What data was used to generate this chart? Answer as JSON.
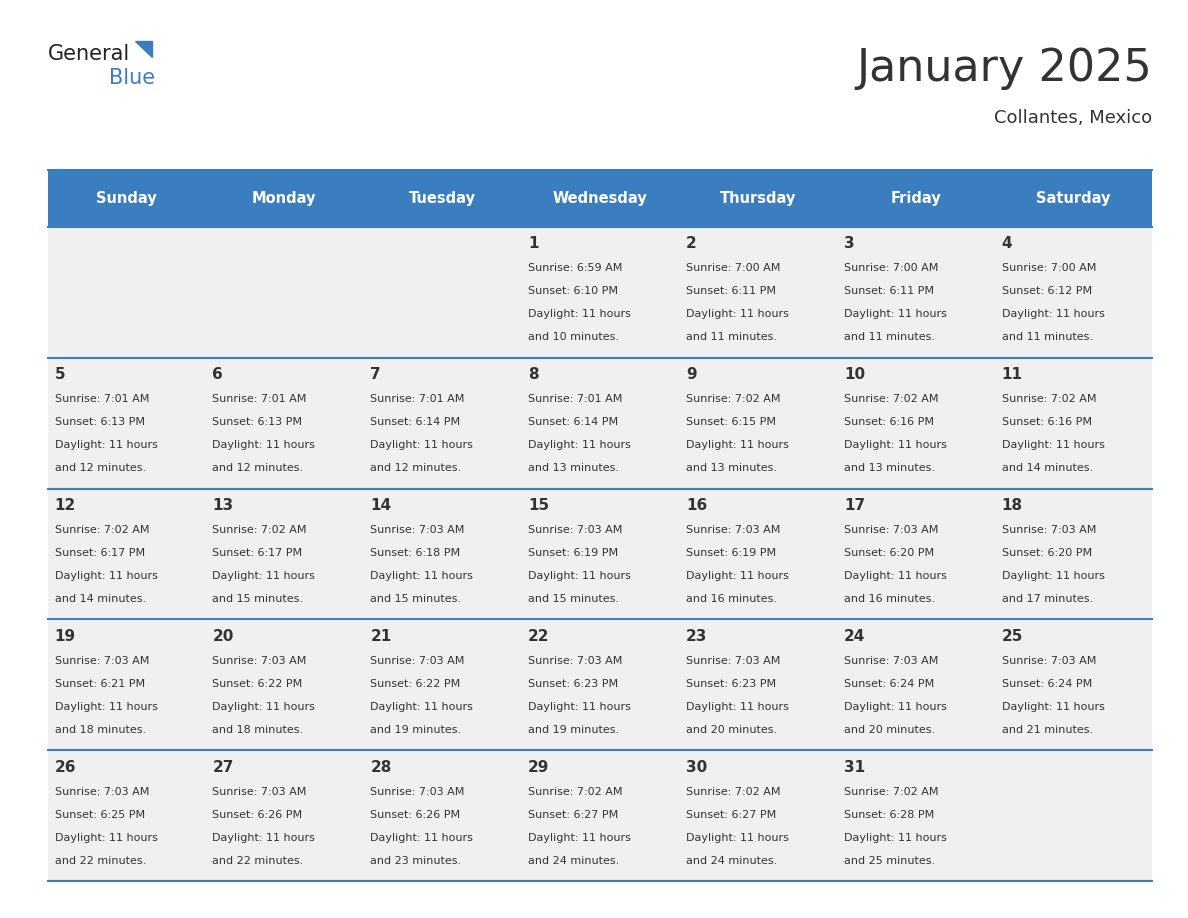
{
  "title": "January 2025",
  "subtitle": "Collantes, Mexico",
  "header_bg": "#3a7ebf",
  "header_text_color": "#ffffff",
  "cell_bg_odd": "#f0f0f0",
  "cell_bg_even": "#ffffff",
  "separator_color": "#3a7ebf",
  "text_color": "#333333",
  "days_of_week": [
    "Sunday",
    "Monday",
    "Tuesday",
    "Wednesday",
    "Thursday",
    "Friday",
    "Saturday"
  ],
  "calendar_data": [
    [
      {
        "day": "",
        "sunrise": "",
        "sunset": "",
        "daylight": ""
      },
      {
        "day": "",
        "sunrise": "",
        "sunset": "",
        "daylight": ""
      },
      {
        "day": "",
        "sunrise": "",
        "sunset": "",
        "daylight": ""
      },
      {
        "day": "1",
        "sunrise": "6:59 AM",
        "sunset": "6:10 PM",
        "daylight": "11 hours and 10 minutes."
      },
      {
        "day": "2",
        "sunrise": "7:00 AM",
        "sunset": "6:11 PM",
        "daylight": "11 hours and 11 minutes."
      },
      {
        "day": "3",
        "sunrise": "7:00 AM",
        "sunset": "6:11 PM",
        "daylight": "11 hours and 11 minutes."
      },
      {
        "day": "4",
        "sunrise": "7:00 AM",
        "sunset": "6:12 PM",
        "daylight": "11 hours and 11 minutes."
      }
    ],
    [
      {
        "day": "5",
        "sunrise": "7:01 AM",
        "sunset": "6:13 PM",
        "daylight": "11 hours and 12 minutes."
      },
      {
        "day": "6",
        "sunrise": "7:01 AM",
        "sunset": "6:13 PM",
        "daylight": "11 hours and 12 minutes."
      },
      {
        "day": "7",
        "sunrise": "7:01 AM",
        "sunset": "6:14 PM",
        "daylight": "11 hours and 12 minutes."
      },
      {
        "day": "8",
        "sunrise": "7:01 AM",
        "sunset": "6:14 PM",
        "daylight": "11 hours and 13 minutes."
      },
      {
        "day": "9",
        "sunrise": "7:02 AM",
        "sunset": "6:15 PM",
        "daylight": "11 hours and 13 minutes."
      },
      {
        "day": "10",
        "sunrise": "7:02 AM",
        "sunset": "6:16 PM",
        "daylight": "11 hours and 13 minutes."
      },
      {
        "day": "11",
        "sunrise": "7:02 AM",
        "sunset": "6:16 PM",
        "daylight": "11 hours and 14 minutes."
      }
    ],
    [
      {
        "day": "12",
        "sunrise": "7:02 AM",
        "sunset": "6:17 PM",
        "daylight": "11 hours and 14 minutes."
      },
      {
        "day": "13",
        "sunrise": "7:02 AM",
        "sunset": "6:17 PM",
        "daylight": "11 hours and 15 minutes."
      },
      {
        "day": "14",
        "sunrise": "7:03 AM",
        "sunset": "6:18 PM",
        "daylight": "11 hours and 15 minutes."
      },
      {
        "day": "15",
        "sunrise": "7:03 AM",
        "sunset": "6:19 PM",
        "daylight": "11 hours and 15 minutes."
      },
      {
        "day": "16",
        "sunrise": "7:03 AM",
        "sunset": "6:19 PM",
        "daylight": "11 hours and 16 minutes."
      },
      {
        "day": "17",
        "sunrise": "7:03 AM",
        "sunset": "6:20 PM",
        "daylight": "11 hours and 16 minutes."
      },
      {
        "day": "18",
        "sunrise": "7:03 AM",
        "sunset": "6:20 PM",
        "daylight": "11 hours and 17 minutes."
      }
    ],
    [
      {
        "day": "19",
        "sunrise": "7:03 AM",
        "sunset": "6:21 PM",
        "daylight": "11 hours and 18 minutes."
      },
      {
        "day": "20",
        "sunrise": "7:03 AM",
        "sunset": "6:22 PM",
        "daylight": "11 hours and 18 minutes."
      },
      {
        "day": "21",
        "sunrise": "7:03 AM",
        "sunset": "6:22 PM",
        "daylight": "11 hours and 19 minutes."
      },
      {
        "day": "22",
        "sunrise": "7:03 AM",
        "sunset": "6:23 PM",
        "daylight": "11 hours and 19 minutes."
      },
      {
        "day": "23",
        "sunrise": "7:03 AM",
        "sunset": "6:23 PM",
        "daylight": "11 hours and 20 minutes."
      },
      {
        "day": "24",
        "sunrise": "7:03 AM",
        "sunset": "6:24 PM",
        "daylight": "11 hours and 20 minutes."
      },
      {
        "day": "25",
        "sunrise": "7:03 AM",
        "sunset": "6:24 PM",
        "daylight": "11 hours and 21 minutes."
      }
    ],
    [
      {
        "day": "26",
        "sunrise": "7:03 AM",
        "sunset": "6:25 PM",
        "daylight": "11 hours and 22 minutes."
      },
      {
        "day": "27",
        "sunrise": "7:03 AM",
        "sunset": "6:26 PM",
        "daylight": "11 hours and 22 minutes."
      },
      {
        "day": "28",
        "sunrise": "7:03 AM",
        "sunset": "6:26 PM",
        "daylight": "11 hours and 23 minutes."
      },
      {
        "day": "29",
        "sunrise": "7:02 AM",
        "sunset": "6:27 PM",
        "daylight": "11 hours and 24 minutes."
      },
      {
        "day": "30",
        "sunrise": "7:02 AM",
        "sunset": "6:27 PM",
        "daylight": "11 hours and 24 minutes."
      },
      {
        "day": "31",
        "sunrise": "7:02 AM",
        "sunset": "6:28 PM",
        "daylight": "11 hours and 25 minutes."
      },
      {
        "day": "",
        "sunrise": "",
        "sunset": "",
        "daylight": ""
      }
    ]
  ],
  "logo_general_color": "#222222",
  "logo_blue_color": "#3a7ebf",
  "logo_triangle_color": "#3a7ebf"
}
